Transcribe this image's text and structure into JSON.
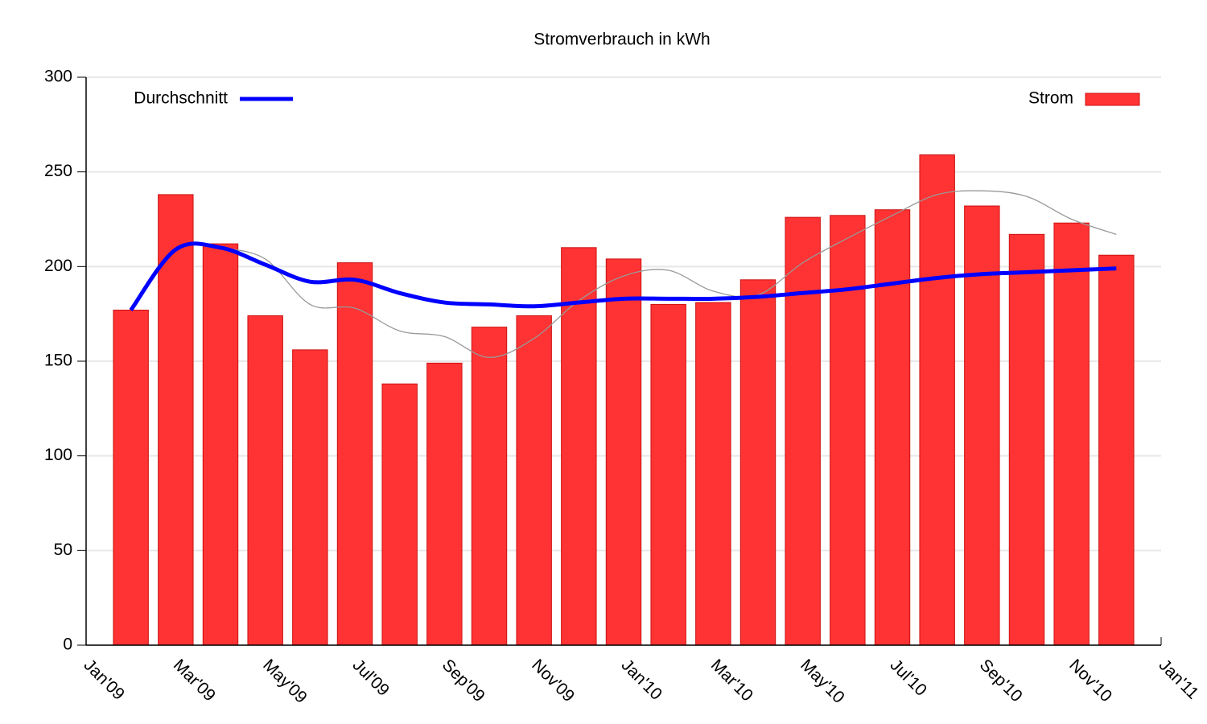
{
  "chart_data": {
    "type": "bar",
    "title": "Stromverbrauch in kWh",
    "x": [
      "2009-02",
      "2009-03",
      "2009-04",
      "2009-05",
      "2009-06",
      "2009-07",
      "2009-08",
      "2009-09",
      "2009-10",
      "2009-11",
      "2009-12",
      "2010-01",
      "2010-02",
      "2010-03",
      "2010-04",
      "2010-05",
      "2010-06",
      "2010-07",
      "2010-08",
      "2010-09",
      "2010-10",
      "2010-11",
      "2010-12"
    ],
    "series": [
      {
        "name": "Strom",
        "type": "bar",
        "color": "#ff3333",
        "values": [
          177,
          238,
          212,
          174,
          156,
          202,
          138,
          149,
          168,
          174,
          210,
          204,
          180,
          181,
          193,
          226,
          227,
          230,
          259,
          232,
          217,
          223,
          206
        ]
      },
      {
        "type": "line",
        "color": "#999999",
        "values": [
          null,
          null,
          210,
          204,
          180,
          178,
          166,
          163,
          152,
          162,
          182,
          195,
          198,
          187,
          185,
          202,
          215,
          227,
          238,
          240,
          237,
          225,
          217
        ]
      },
      {
        "name": "Durchschnitt",
        "type": "line",
        "color": "#0000ff",
        "values": [
          177,
          209,
          210,
          201,
          192,
          193,
          186,
          181,
          180,
          179,
          181,
          183,
          183,
          183,
          184,
          186,
          188,
          191,
          194,
          196,
          197,
          198,
          199
        ]
      }
    ],
    "xlim": [
      "2009-01",
      "2011-01"
    ],
    "xticks": [
      {
        "value": "2009-01",
        "label": "Jan'09"
      },
      {
        "value": "2009-03",
        "label": "Mar'09"
      },
      {
        "value": "2009-05",
        "label": "May'09"
      },
      {
        "value": "2009-07",
        "label": "Jul'09"
      },
      {
        "value": "2009-09",
        "label": "Sep'09"
      },
      {
        "value": "2009-11",
        "label": "Nov'09"
      },
      {
        "value": "2010-01",
        "label": "Jan'10"
      },
      {
        "value": "2010-03",
        "label": "Mar'10"
      },
      {
        "value": "2010-05",
        "label": "May'10"
      },
      {
        "value": "2010-07",
        "label": "Jul'10"
      },
      {
        "value": "2010-09",
        "label": "Sep'10"
      },
      {
        "value": "2010-11",
        "label": "Nov'10"
      },
      {
        "value": "2011-01",
        "label": "Jan'11"
      }
    ],
    "ylim": [
      0,
      300
    ],
    "yticks": [
      0,
      50,
      100,
      150,
      200,
      250,
      300
    ],
    "grid": true
  }
}
